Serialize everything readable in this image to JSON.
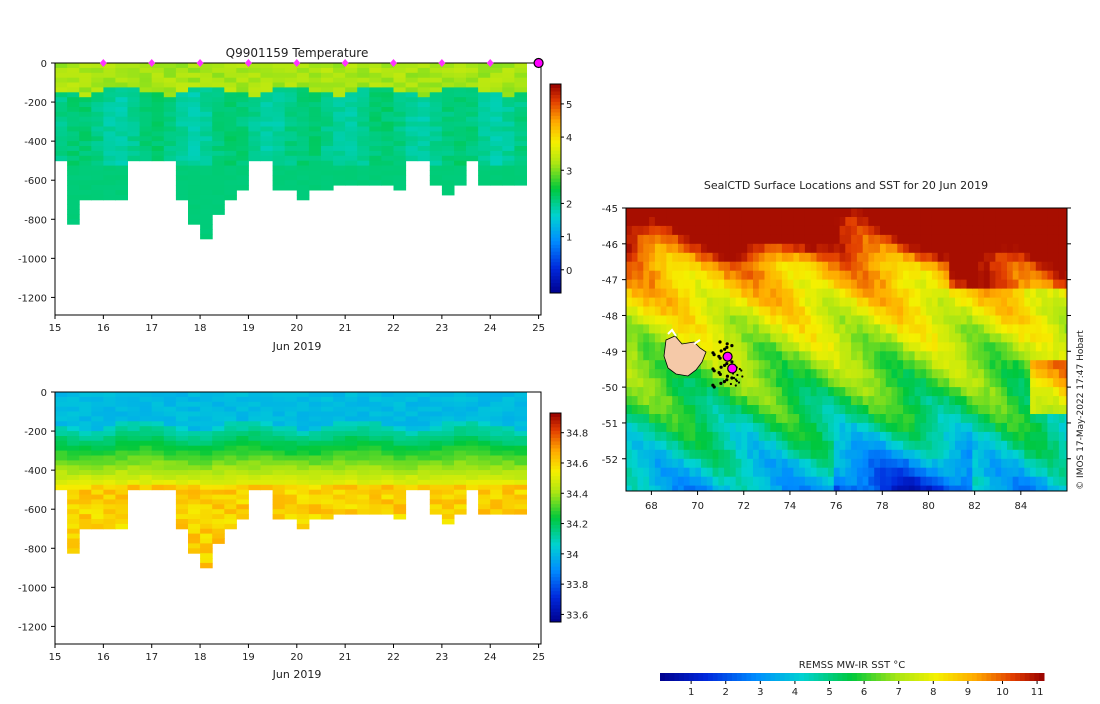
{
  "chart_data": [
    {
      "type": "heatmap",
      "title": "Q9901159  Temperature",
      "xlabel": "Jun 2019",
      "ylabel": "",
      "x_ticks": [
        "15",
        "16",
        "17",
        "18",
        "19",
        "20",
        "21",
        "22",
        "23",
        "24",
        "25"
      ],
      "x_range": [
        15,
        25.05
      ],
      "y_ticks": [
        "0",
        "-200",
        "-400",
        "-600",
        "-800",
        "-1000",
        "-1200"
      ],
      "y_range": [
        -1290,
        0
      ],
      "colorbar_ticks": [
        "0",
        "1",
        "2",
        "3",
        "4",
        "5"
      ],
      "colorbar_range": [
        -0.7,
        5.6
      ],
      "profile_markers_day": [
        16,
        17,
        18,
        19,
        20,
        21,
        22,
        23,
        24
      ],
      "current_marker_day": 25,
      "profiles": [
        {
          "day": 15.0,
          "max_depth": -500
        },
        {
          "day": 15.25,
          "max_depth": -820
        },
        {
          "day": 15.5,
          "max_depth": -700
        },
        {
          "day": 15.75,
          "max_depth": -700
        },
        {
          "day": 16.0,
          "max_depth": -700
        },
        {
          "day": 16.25,
          "max_depth": -700
        },
        {
          "day": 16.5,
          "max_depth": -500
        },
        {
          "day": 16.75,
          "max_depth": -500
        },
        {
          "day": 17.0,
          "max_depth": -500
        },
        {
          "day": 17.25,
          "max_depth": -500
        },
        {
          "day": 17.5,
          "max_depth": -700
        },
        {
          "day": 17.75,
          "max_depth": -810
        },
        {
          "day": 18.0,
          "max_depth": -895
        },
        {
          "day": 18.25,
          "max_depth": -760
        },
        {
          "day": 18.5,
          "max_depth": -680
        },
        {
          "day": 18.75,
          "max_depth": -650
        },
        {
          "day": 19.0,
          "max_depth": -500
        },
        {
          "day": 19.25,
          "max_depth": -500
        },
        {
          "day": 19.5,
          "max_depth": -640
        },
        {
          "day": 19.75,
          "max_depth": -630
        },
        {
          "day": 20.0,
          "max_depth": -700
        },
        {
          "day": 20.25,
          "max_depth": -650
        },
        {
          "day": 20.5,
          "max_depth": -630
        },
        {
          "day": 20.75,
          "max_depth": -615
        },
        {
          "day": 21.0,
          "max_depth": -620
        },
        {
          "day": 21.25,
          "max_depth": -605
        },
        {
          "day": 21.5,
          "max_depth": -610
        },
        {
          "day": 21.75,
          "max_depth": -605
        },
        {
          "day": 22.0,
          "max_depth": -630
        },
        {
          "day": 22.25,
          "max_depth": -500
        },
        {
          "day": 22.5,
          "max_depth": -500
        },
        {
          "day": 22.75,
          "max_depth": -620
        },
        {
          "day": 23.0,
          "max_depth": -660
        },
        {
          "day": 23.25,
          "max_depth": -615
        },
        {
          "day": 23.5,
          "max_depth": -500
        },
        {
          "day": 23.75,
          "max_depth": -610
        },
        {
          "day": 24.0,
          "max_depth": -610
        },
        {
          "day": 24.25,
          "max_depth": -612
        },
        {
          "day": 24.5,
          "max_depth": -615
        }
      ]
    },
    {
      "type": "heatmap",
      "title": "",
      "xlabel": "Jun 2019",
      "ylabel": "",
      "x_ticks": [
        "15",
        "16",
        "17",
        "18",
        "19",
        "20",
        "21",
        "22",
        "23",
        "24",
        "25"
      ],
      "x_range": [
        15,
        25.05
      ],
      "y_ticks": [
        "0",
        "-200",
        "-400",
        "-600",
        "-800",
        "-1000",
        "-1200"
      ],
      "y_range": [
        -1290,
        0
      ],
      "colorbar_ticks": [
        "33.6",
        "33.8",
        "34",
        "34.2",
        "34.4",
        "34.6",
        "34.8"
      ],
      "colorbar_range": [
        33.55,
        34.93
      ]
    },
    {
      "type": "heatmap",
      "title": "SealCTD Surface Locations and SST for 20 Jun 2019",
      "xlabel": "",
      "ylabel": "",
      "x_ticks": [
        "68",
        "70",
        "72",
        "74",
        "76",
        "78",
        "80",
        "82",
        "84"
      ],
      "x_range": [
        66.9,
        86.0
      ],
      "y_ticks": [
        "-45",
        "-46",
        "-47",
        "-48",
        "-49",
        "-50",
        "-51",
        "-52"
      ],
      "y_range": [
        -52.9,
        -45.0
      ],
      "side_note": "© IMOS 17-May-2022 17:47 Hobart",
      "colorbar_label": "REMSS MW-IR SST °C",
      "colorbar_ticks": [
        "1",
        "2",
        "3",
        "4",
        "5",
        "6",
        "7",
        "8",
        "9",
        "10",
        "11"
      ],
      "colorbar_range": [
        0.1,
        11.2
      ],
      "track_positions": [
        {
          "lon": 71.3,
          "lat": -49.15
        },
        {
          "lon": 71.5,
          "lat": -49.48
        }
      ]
    }
  ]
}
